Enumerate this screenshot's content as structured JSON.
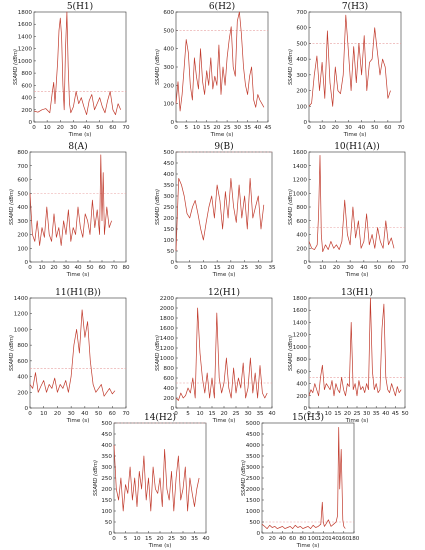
{
  "figure": {
    "series_color": "#c0392b",
    "threshold_color": "#e8a0a0",
    "threshold_value": 500,
    "ylabel": "SSAMD (dBm)",
    "xlabel": "Time (s)"
  },
  "chart_data": [
    {
      "type": "line",
      "title": "5(H1)",
      "xlim": [
        0,
        70
      ],
      "xticks": [
        0,
        10,
        20,
        30,
        40,
        50,
        60,
        70
      ],
      "ylim": [
        0,
        1800
      ],
      "yticks": [
        0,
        200,
        400,
        600,
        800,
        1000,
        1200,
        1400,
        1600,
        1800
      ],
      "x": [
        0,
        3,
        6,
        9,
        12,
        14,
        15,
        16,
        18,
        19,
        20,
        21,
        22,
        23,
        24,
        25,
        26,
        27,
        28,
        30,
        32,
        34,
        36,
        38,
        40,
        42,
        44,
        46,
        48,
        50,
        52,
        54,
        56,
        58,
        60,
        62,
        64,
        66
      ],
      "y": [
        180,
        160,
        200,
        220,
        150,
        500,
        650,
        300,
        1000,
        1500,
        1700,
        1400,
        600,
        200,
        1200,
        1800,
        900,
        300,
        150,
        250,
        500,
        300,
        400,
        250,
        120,
        350,
        450,
        200,
        300,
        400,
        250,
        150,
        350,
        500,
        200,
        120,
        300,
        200
      ]
    },
    {
      "type": "line",
      "title": "6(H2)",
      "xlim": [
        0,
        45
      ],
      "xticks": [
        0,
        5,
        10,
        15,
        20,
        25,
        30,
        35,
        40,
        45
      ],
      "ylim": [
        0,
        600
      ],
      "yticks": [
        0,
        100,
        200,
        300,
        400,
        500,
        600
      ],
      "x": [
        0,
        1,
        2,
        3,
        4,
        5,
        6,
        7,
        8,
        9,
        10,
        11,
        12,
        13,
        14,
        15,
        16,
        17,
        18,
        19,
        20,
        21,
        22,
        23,
        24,
        25,
        26,
        27,
        28,
        29,
        30,
        31,
        32,
        33,
        34,
        35,
        36,
        37,
        38,
        39,
        40,
        41,
        42,
        43
      ],
      "y": [
        100,
        220,
        60,
        150,
        300,
        450,
        380,
        200,
        120,
        350,
        250,
        180,
        400,
        220,
        150,
        280,
        200,
        350,
        180,
        250,
        200,
        420,
        150,
        300,
        200,
        350,
        450,
        520,
        300,
        250,
        550,
        600,
        480,
        300,
        200,
        150,
        250,
        300,
        120,
        80,
        150,
        120,
        100,
        80
      ]
    },
    {
      "type": "line",
      "title": "7(H3)",
      "xlim": [
        0,
        70
      ],
      "xticks": [
        0,
        10,
        20,
        30,
        40,
        50,
        60,
        70
      ],
      "ylim": [
        0,
        700
      ],
      "yticks": [
        0,
        100,
        200,
        300,
        400,
        500,
        600,
        700
      ],
      "x": [
        0,
        2,
        4,
        6,
        8,
        10,
        12,
        14,
        16,
        18,
        20,
        22,
        24,
        26,
        28,
        30,
        32,
        34,
        36,
        38,
        40,
        42,
        44,
        46,
        48,
        50,
        52,
        54,
        56,
        58,
        60,
        62
      ],
      "y": [
        100,
        120,
        300,
        420,
        200,
        380,
        150,
        580,
        250,
        100,
        350,
        200,
        180,
        300,
        680,
        450,
        200,
        480,
        250,
        500,
        300,
        550,
        200,
        380,
        400,
        600,
        450,
        300,
        400,
        350,
        150,
        200
      ]
    },
    {
      "type": "line",
      "title": "8(A)",
      "xlim": [
        0,
        80
      ],
      "xticks": [
        0,
        10,
        20,
        30,
        40,
        50,
        60,
        70,
        80
      ],
      "ylim": [
        0,
        800
      ],
      "yticks": [
        0,
        100,
        200,
        300,
        400,
        500,
        600,
        700,
        800
      ],
      "x": [
        0,
        2,
        4,
        6,
        8,
        10,
        12,
        14,
        16,
        18,
        20,
        22,
        24,
        26,
        28,
        30,
        32,
        34,
        36,
        38,
        40,
        42,
        44,
        46,
        48,
        50,
        52,
        54,
        56,
        58,
        59,
        60,
        61,
        62,
        64,
        66,
        68
      ],
      "y": [
        500,
        200,
        150,
        300,
        120,
        250,
        180,
        400,
        200,
        150,
        350,
        180,
        250,
        120,
        300,
        200,
        380,
        150,
        250,
        200,
        400,
        250,
        180,
        350,
        300,
        200,
        450,
        250,
        380,
        200,
        780,
        300,
        650,
        200,
        400,
        250,
        300
      ]
    },
    {
      "type": "line",
      "title": "9(B)",
      "xlim": [
        0,
        35
      ],
      "xticks": [
        0,
        5,
        10,
        15,
        20,
        25,
        30,
        35
      ],
      "ylim": [
        0,
        500
      ],
      "yticks": [
        0,
        50,
        100,
        150,
        200,
        250,
        300,
        350,
        400,
        450,
        500
      ],
      "x": [
        0,
        1,
        2,
        3,
        4,
        5,
        6,
        7,
        8,
        9,
        10,
        11,
        12,
        13,
        14,
        15,
        16,
        17,
        18,
        19,
        20,
        21,
        22,
        23,
        24,
        25,
        26,
        27,
        28,
        29,
        30,
        31,
        32
      ],
      "y": [
        50,
        380,
        350,
        300,
        220,
        200,
        250,
        280,
        220,
        150,
        100,
        180,
        250,
        300,
        200,
        350,
        280,
        150,
        320,
        200,
        380,
        250,
        180,
        350,
        200,
        300,
        150,
        380,
        200,
        250,
        300,
        150,
        260
      ]
    },
    {
      "type": "line",
      "title": "10(H1(A))",
      "xlim": [
        0,
        70
      ],
      "xticks": [
        0,
        10,
        20,
        30,
        40,
        50,
        60,
        70
      ],
      "ylim": [
        0,
        1600
      ],
      "yticks": [
        0,
        200,
        400,
        600,
        800,
        1000,
        1200,
        1400,
        1600
      ],
      "x": [
        0,
        2,
        4,
        6,
        7,
        8,
        9,
        10,
        12,
        14,
        16,
        18,
        20,
        22,
        24,
        26,
        28,
        30,
        32,
        34,
        36,
        38,
        40,
        42,
        44,
        46,
        48,
        50,
        52,
        54,
        56,
        58,
        60,
        62
      ],
      "y": [
        300,
        200,
        180,
        250,
        700,
        1550,
        400,
        150,
        250,
        180,
        300,
        200,
        250,
        180,
        300,
        900,
        400,
        250,
        800,
        350,
        600,
        200,
        300,
        700,
        250,
        400,
        200,
        500,
        300,
        200,
        600,
        250,
        350,
        200
      ]
    },
    {
      "type": "line",
      "title": "11(H1(B))",
      "xlim": [
        0,
        70
      ],
      "xticks": [
        0,
        10,
        20,
        30,
        40,
        50,
        60,
        70
      ],
      "ylim": [
        0,
        1400
      ],
      "yticks": [
        0,
        200,
        400,
        600,
        800,
        1000,
        1200,
        1400
      ],
      "x": [
        0,
        2,
        4,
        6,
        8,
        10,
        12,
        14,
        16,
        18,
        20,
        22,
        24,
        26,
        28,
        30,
        32,
        34,
        36,
        38,
        40,
        42,
        44,
        46,
        48,
        50,
        52,
        54,
        56,
        58,
        60,
        62
      ],
      "y": [
        300,
        250,
        450,
        200,
        280,
        350,
        200,
        300,
        250,
        380,
        200,
        300,
        250,
        350,
        200,
        400,
        800,
        1000,
        700,
        1250,
        900,
        1100,
        600,
        300,
        200,
        250,
        300,
        150,
        200,
        250,
        180,
        220
      ]
    },
    {
      "type": "line",
      "title": "12(H1)",
      "xlim": [
        0,
        40
      ],
      "xticks": [
        0,
        5,
        10,
        15,
        20,
        25,
        30,
        35,
        40
      ],
      "ylim": [
        0,
        2200
      ],
      "yticks": [
        0,
        200,
        400,
        600,
        800,
        1000,
        1200,
        1400,
        1600,
        1800,
        2000,
        2200
      ],
      "x": [
        0,
        1,
        2,
        3,
        4,
        5,
        6,
        7,
        8,
        9,
        10,
        11,
        12,
        13,
        14,
        15,
        16,
        17,
        18,
        19,
        20,
        21,
        22,
        23,
        24,
        25,
        26,
        27,
        28,
        29,
        30,
        31,
        32,
        33,
        34,
        35,
        36,
        37,
        38
      ],
      "y": [
        200,
        150,
        300,
        200,
        250,
        400,
        300,
        600,
        200,
        2000,
        1100,
        600,
        300,
        700,
        200,
        600,
        200,
        1900,
        600,
        300,
        500,
        1000,
        400,
        200,
        800,
        300,
        600,
        400,
        900,
        200,
        400,
        1000,
        300,
        700,
        200,
        850,
        300,
        200,
        300
      ]
    },
    {
      "type": "line",
      "title": "13(H1)",
      "xlim": [
        0,
        50
      ],
      "xticks": [
        0,
        5,
        10,
        15,
        20,
        25,
        30,
        35,
        40,
        45,
        50
      ],
      "ylim": [
        0,
        1800
      ],
      "yticks": [
        0,
        200,
        400,
        600,
        800,
        1000,
        1200,
        1400,
        1600,
        1800
      ],
      "x": [
        0,
        1,
        2,
        3,
        4,
        5,
        6,
        7,
        8,
        9,
        10,
        11,
        12,
        13,
        14,
        15,
        16,
        17,
        18,
        19,
        20,
        21,
        22,
        23,
        24,
        25,
        26,
        27,
        28,
        29,
        30,
        31,
        32,
        33,
        34,
        35,
        36,
        37,
        38,
        39,
        40,
        41,
        42,
        43,
        44,
        45,
        46,
        47,
        48
      ],
      "y": [
        200,
        300,
        250,
        400,
        300,
        200,
        500,
        700,
        300,
        400,
        350,
        300,
        450,
        200,
        400,
        300,
        250,
        500,
        300,
        200,
        400,
        350,
        1400,
        300,
        400,
        200,
        450,
        300,
        350,
        250,
        400,
        300,
        1800,
        600,
        300,
        400,
        250,
        300,
        1300,
        1700,
        500,
        300,
        250,
        400,
        300,
        200,
        350,
        250,
        300
      ]
    },
    {
      "type": "line",
      "title": "14(H2)",
      "xlim": [
        0,
        40
      ],
      "xticks": [
        0,
        5,
        10,
        15,
        20,
        25,
        30,
        35,
        40
      ],
      "ylim": [
        0,
        500
      ],
      "yticks": [
        0,
        50,
        100,
        150,
        200,
        250,
        300,
        350,
        400,
        450,
        500
      ],
      "x": [
        0,
        1,
        2,
        3,
        4,
        5,
        6,
        7,
        8,
        9,
        10,
        11,
        12,
        13,
        14,
        15,
        16,
        17,
        18,
        19,
        20,
        21,
        22,
        23,
        24,
        25,
        26,
        27,
        28,
        29,
        30,
        31,
        32,
        33,
        34,
        35,
        36,
        37
      ],
      "y": [
        400,
        200,
        150,
        250,
        100,
        220,
        180,
        300,
        150,
        250,
        120,
        280,
        200,
        350,
        150,
        250,
        100,
        300,
        200,
        180,
        250,
        120,
        380,
        200,
        150,
        280,
        100,
        250,
        350,
        150,
        200,
        300,
        100,
        250,
        180,
        120,
        200,
        250
      ]
    },
    {
      "type": "line",
      "title": "15(H3)",
      "xlim": [
        0,
        180
      ],
      "xticks": [
        0,
        20,
        40,
        60,
        80,
        100,
        120,
        140,
        160,
        180
      ],
      "ylim": [
        0,
        5000
      ],
      "yticks": [
        0,
        500,
        1000,
        1500,
        2000,
        2500,
        3000,
        3500,
        4000,
        4500,
        5000
      ],
      "x": [
        0,
        5,
        10,
        15,
        20,
        25,
        30,
        35,
        40,
        45,
        50,
        55,
        60,
        65,
        70,
        75,
        80,
        85,
        90,
        95,
        100,
        105,
        110,
        115,
        118,
        120,
        122,
        125,
        130,
        135,
        140,
        145,
        148,
        150,
        152,
        155,
        158,
        160,
        163
      ],
      "y": [
        400,
        300,
        200,
        350,
        250,
        300,
        200,
        250,
        300,
        200,
        250,
        300,
        200,
        350,
        250,
        300,
        200,
        250,
        300,
        200,
        350,
        250,
        300,
        400,
        1400,
        500,
        300,
        400,
        600,
        300,
        400,
        500,
        800,
        4800,
        2000,
        3800,
        600,
        300,
        200
      ]
    }
  ]
}
